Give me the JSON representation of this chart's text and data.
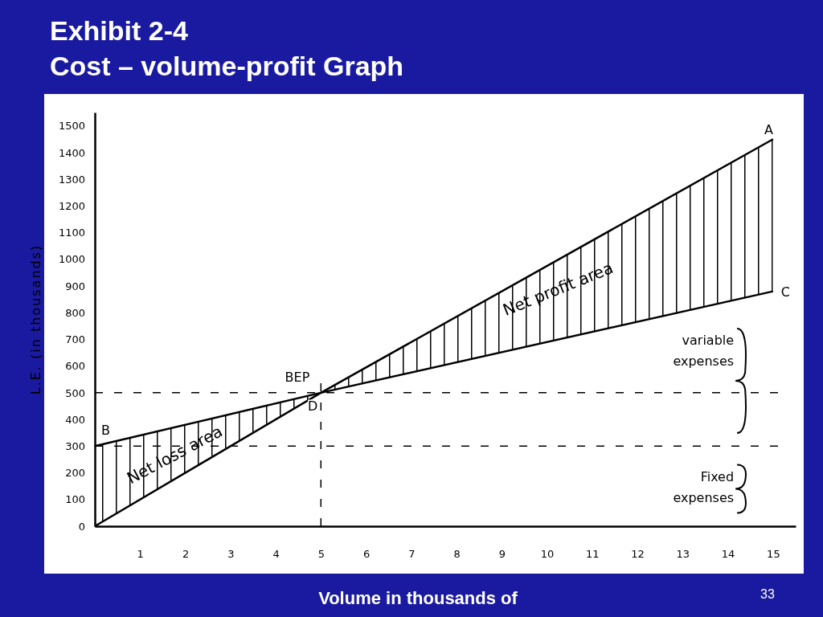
{
  "chart_data": {
    "type": "line",
    "title": "Exhibit  2-4\nCost – volume-profit Graph",
    "xlabel": "Volume in thousands of",
    "ylabel": "L.E. (in thousands)",
    "x": [
      0,
      5,
      15
    ],
    "series": [
      {
        "color": "#000000",
        "values": [
          0,
          500,
          1450
        ],
        "lower": [
          0,
          500,
          880
        ],
        "upper": [
          300,
          500,
          1450
        ]
      },
      {
        "color": "#000000",
        "values": [
          300,
          500,
          880
        ]
      }
    ],
    "xlim": [
      0,
      15.5
    ],
    "xticks": [
      1,
      2,
      3,
      4,
      5,
      6,
      7,
      8,
      9,
      10,
      11,
      12,
      13,
      14,
      15
    ],
    "ylim": [
      0,
      1550
    ],
    "yticks": [
      0,
      100,
      200,
      300,
      400,
      500,
      600,
      700,
      800,
      900,
      1000,
      1100,
      1200,
      1300,
      1400,
      1500
    ],
    "grid": false,
    "marker": "none",
    "line_style": "solid",
    "ref_lines": [
      {
        "axis": "y",
        "value": 500,
        "line_style": "dashed",
        "color": "#000000"
      },
      {
        "axis": "y",
        "value": 300,
        "line_style": "dashed",
        "color": "#000000"
      },
      {
        "axis": "x",
        "value": 5,
        "line_style": "dashed",
        "color": "#000000"
      }
    ],
    "annotations": [
      {
        "text": "BEP",
        "x": 5,
        "y": 500
      },
      {
        "text": "A",
        "x": 15,
        "y": 1450
      },
      {
        "text": "B",
        "x": 0,
        "y": 300
      },
      {
        "text": "C",
        "x": 15,
        "y": 880
      },
      {
        "text": "D",
        "x": 5,
        "y": 500
      },
      "Net profit area",
      "Net loss area",
      "variable expenses",
      "Fixed expenses",
      "33"
    ]
  }
}
